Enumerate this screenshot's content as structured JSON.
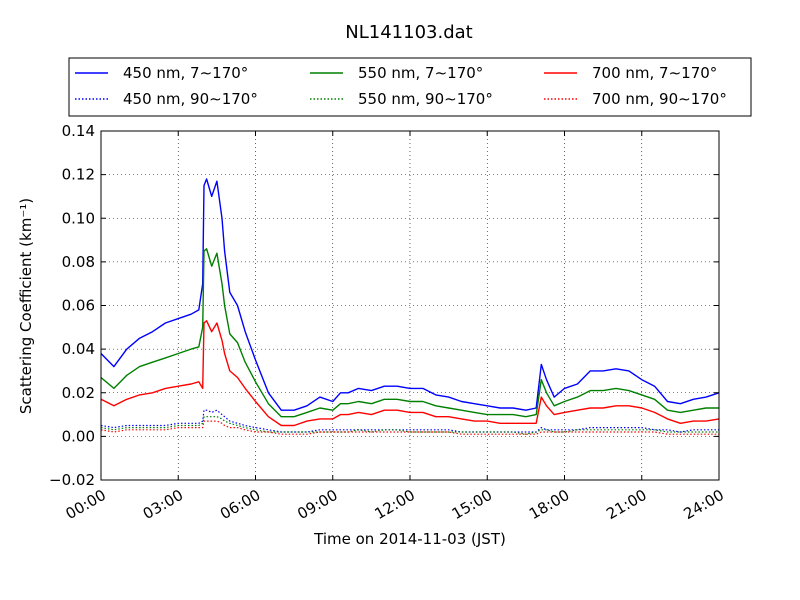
{
  "chart_data": {
    "type": "line",
    "title": "NL141103.dat",
    "xlabel": "Time on 2014-11-03 (JST)",
    "ylabel": "Scattering Coefficient (km⁻¹)",
    "xlim": [
      "00:00",
      "24:00"
    ],
    "ylim": [
      -0.02,
      0.14
    ],
    "grid": true,
    "legend_position": "top",
    "x_ticks": [
      "00:00",
      "03:00",
      "06:00",
      "09:00",
      "12:00",
      "15:00",
      "18:00",
      "21:00",
      "24:00"
    ],
    "y_ticks": [
      "−0.02",
      "0.00",
      "0.02",
      "0.04",
      "0.06",
      "0.08",
      "0.10",
      "0.12",
      "0.14"
    ],
    "x_hours": [
      0,
      0.5,
      1,
      1.5,
      2,
      2.5,
      3,
      3.5,
      3.8,
      3.95,
      4.0,
      4.1,
      4.3,
      4.5,
      4.7,
      4.8,
      5.0,
      5.3,
      5.6,
      6.0,
      6.5,
      7.0,
      7.5,
      8.0,
      8.5,
      9.0,
      9.3,
      9.6,
      10.0,
      10.5,
      11.0,
      11.5,
      12.0,
      12.5,
      13.0,
      13.5,
      14.0,
      14.5,
      15.0,
      15.5,
      16.0,
      16.5,
      16.9,
      17.1,
      17.3,
      17.6,
      18.0,
      18.5,
      19.0,
      19.5,
      20.0,
      20.5,
      21.0,
      21.5,
      22.0,
      22.5,
      23.0,
      23.5,
      24.0
    ],
    "series": [
      {
        "name": "450 nm, 7∼170°",
        "color": "#0000ff",
        "style": "solid",
        "values": [
          0.038,
          0.032,
          0.04,
          0.045,
          0.048,
          0.052,
          0.054,
          0.056,
          0.058,
          0.07,
          0.115,
          0.118,
          0.11,
          0.117,
          0.1,
          0.085,
          0.066,
          0.06,
          0.048,
          0.035,
          0.02,
          0.012,
          0.012,
          0.014,
          0.018,
          0.016,
          0.02,
          0.02,
          0.022,
          0.021,
          0.023,
          0.023,
          0.022,
          0.022,
          0.019,
          0.018,
          0.016,
          0.015,
          0.014,
          0.013,
          0.013,
          0.012,
          0.013,
          0.033,
          0.026,
          0.018,
          0.022,
          0.024,
          0.03,
          0.03,
          0.031,
          0.03,
          0.026,
          0.023,
          0.016,
          0.015,
          0.017,
          0.018,
          0.02
        ]
      },
      {
        "name": "550 nm, 7∼170°",
        "color": "#008000",
        "style": "solid",
        "values": [
          0.027,
          0.022,
          0.028,
          0.032,
          0.034,
          0.036,
          0.038,
          0.04,
          0.041,
          0.05,
          0.085,
          0.086,
          0.078,
          0.084,
          0.07,
          0.06,
          0.047,
          0.043,
          0.034,
          0.025,
          0.015,
          0.009,
          0.009,
          0.011,
          0.013,
          0.012,
          0.015,
          0.015,
          0.016,
          0.015,
          0.017,
          0.017,
          0.016,
          0.016,
          0.014,
          0.013,
          0.012,
          0.011,
          0.01,
          0.01,
          0.01,
          0.009,
          0.01,
          0.026,
          0.02,
          0.014,
          0.016,
          0.018,
          0.021,
          0.021,
          0.022,
          0.021,
          0.019,
          0.017,
          0.012,
          0.011,
          0.012,
          0.013,
          0.013
        ]
      },
      {
        "name": "700 nm, 7∼170°",
        "color": "#ff0000",
        "style": "solid",
        "values": [
          0.017,
          0.014,
          0.017,
          0.019,
          0.02,
          0.022,
          0.023,
          0.024,
          0.025,
          0.022,
          0.052,
          0.053,
          0.048,
          0.052,
          0.044,
          0.038,
          0.03,
          0.027,
          0.022,
          0.016,
          0.009,
          0.005,
          0.005,
          0.007,
          0.008,
          0.008,
          0.01,
          0.01,
          0.011,
          0.01,
          0.012,
          0.012,
          0.011,
          0.011,
          0.009,
          0.009,
          0.008,
          0.007,
          0.007,
          0.006,
          0.006,
          0.006,
          0.006,
          0.018,
          0.014,
          0.01,
          0.011,
          0.012,
          0.013,
          0.013,
          0.014,
          0.014,
          0.013,
          0.011,
          0.008,
          0.006,
          0.007,
          0.007,
          0.008
        ]
      },
      {
        "name": "450 nm, 90∼170°",
        "color": "#0000ff",
        "style": "dotted",
        "values": [
          0.005,
          0.004,
          0.005,
          0.005,
          0.005,
          0.005,
          0.006,
          0.006,
          0.006,
          0.007,
          0.012,
          0.012,
          0.011,
          0.012,
          0.01,
          0.009,
          0.007,
          0.006,
          0.005,
          0.004,
          0.003,
          0.002,
          0.002,
          0.002,
          0.003,
          0.003,
          0.003,
          0.003,
          0.003,
          0.003,
          0.003,
          0.003,
          0.003,
          0.003,
          0.003,
          0.003,
          0.002,
          0.002,
          0.002,
          0.002,
          0.002,
          0.002,
          0.002,
          0.004,
          0.003,
          0.003,
          0.003,
          0.003,
          0.004,
          0.004,
          0.004,
          0.004,
          0.004,
          0.003,
          0.003,
          0.002,
          0.003,
          0.003,
          0.003
        ]
      },
      {
        "name": "550 nm, 90∼170°",
        "color": "#008000",
        "style": "dotted",
        "values": [
          0.004,
          0.003,
          0.004,
          0.004,
          0.004,
          0.004,
          0.005,
          0.005,
          0.005,
          0.006,
          0.009,
          0.009,
          0.009,
          0.009,
          0.008,
          0.007,
          0.006,
          0.005,
          0.004,
          0.003,
          0.002,
          0.002,
          0.002,
          0.002,
          0.002,
          0.002,
          0.002,
          0.002,
          0.003,
          0.002,
          0.003,
          0.003,
          0.002,
          0.002,
          0.002,
          0.002,
          0.002,
          0.002,
          0.002,
          0.002,
          0.002,
          0.001,
          0.002,
          0.003,
          0.003,
          0.002,
          0.002,
          0.003,
          0.003,
          0.003,
          0.003,
          0.003,
          0.003,
          0.003,
          0.002,
          0.002,
          0.002,
          0.002,
          0.002
        ]
      },
      {
        "name": "700 nm, 90∼170°",
        "color": "#ff0000",
        "style": "dotted",
        "values": [
          0.003,
          0.002,
          0.003,
          0.003,
          0.003,
          0.003,
          0.004,
          0.004,
          0.004,
          0.004,
          0.007,
          0.007,
          0.007,
          0.007,
          0.006,
          0.005,
          0.004,
          0.004,
          0.003,
          0.002,
          0.002,
          0.001,
          0.001,
          0.001,
          0.002,
          0.002,
          0.002,
          0.002,
          0.002,
          0.002,
          0.002,
          0.002,
          0.002,
          0.002,
          0.002,
          0.002,
          0.001,
          0.001,
          0.001,
          0.001,
          0.001,
          0.001,
          0.001,
          0.002,
          0.002,
          0.002,
          0.002,
          0.002,
          0.002,
          0.002,
          0.002,
          0.002,
          0.002,
          0.002,
          0.001,
          0.001,
          0.001,
          0.001,
          0.001
        ]
      }
    ],
    "legend_order": [
      0,
      1,
      2,
      3,
      4,
      5
    ]
  }
}
